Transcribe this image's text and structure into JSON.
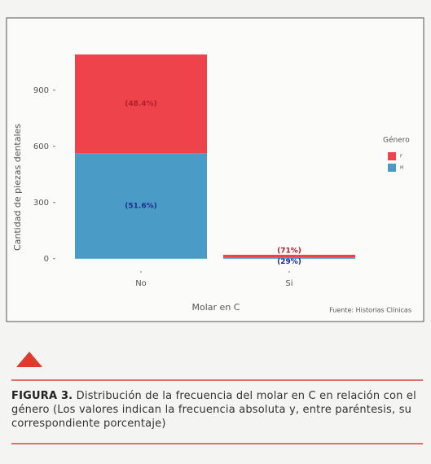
{
  "chart_data": {
    "type": "stacked-bar",
    "y_label": "Cantidad de piezas dentales",
    "x_label": "Molar en C",
    "source": "Fuente: Historias Clínicas",
    "legend_title": "Género",
    "categories": [
      "No",
      "Si"
    ],
    "series": [
      {
        "name": "M",
        "color": "#4a9cc7",
        "values": [
          563,
          6
        ],
        "labels": [
          "(51.6%)",
          "(29%)"
        ],
        "label_color": "#1d2f8a"
      },
      {
        "name": "F",
        "color": "#ef434b",
        "values": [
          528,
          15
        ],
        "labels": [
          "(48.4%)",
          "(71%)"
        ],
        "label_color": "#b0202a"
      }
    ],
    "ylim": [
      -40,
      1160
    ],
    "yticks": [
      0,
      300,
      600,
      900
    ],
    "legend": "right"
  },
  "caption": {
    "label": "FIGURA 3.",
    "text": "Distribución de la frecuencia del molar en C en relación con el género (Los valores indican la frecuencia absoluta y, entre paréntesis, su correspondiente porcentaje)"
  }
}
